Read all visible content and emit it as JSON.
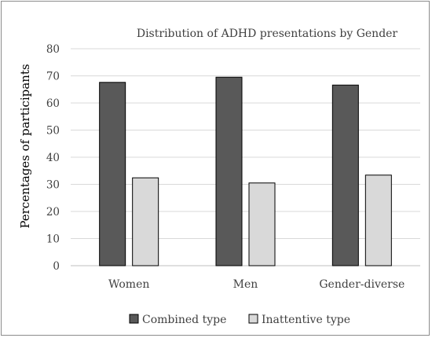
{
  "chart_data": {
    "type": "bar",
    "title": "Distribution of ADHD presentations by Gender",
    "ylabel": "Percentages of participants",
    "xlabel": "",
    "categories": [
      "Women",
      "Men",
      "Gender-diverse"
    ],
    "series": [
      {
        "name": "Combined type",
        "values": [
          67.6,
          69.5,
          66.6
        ],
        "color": "#595959"
      },
      {
        "name": "Inattentive type",
        "values": [
          32.4,
          30.5,
          33.4
        ],
        "color": "#d9d9d9"
      }
    ],
    "ylim": [
      0,
      80
    ],
    "yticks": [
      "0",
      "10",
      "20",
      "30",
      "40",
      "50",
      "60",
      "70",
      "80"
    ],
    "grid": true,
    "legend": "bottom"
  }
}
